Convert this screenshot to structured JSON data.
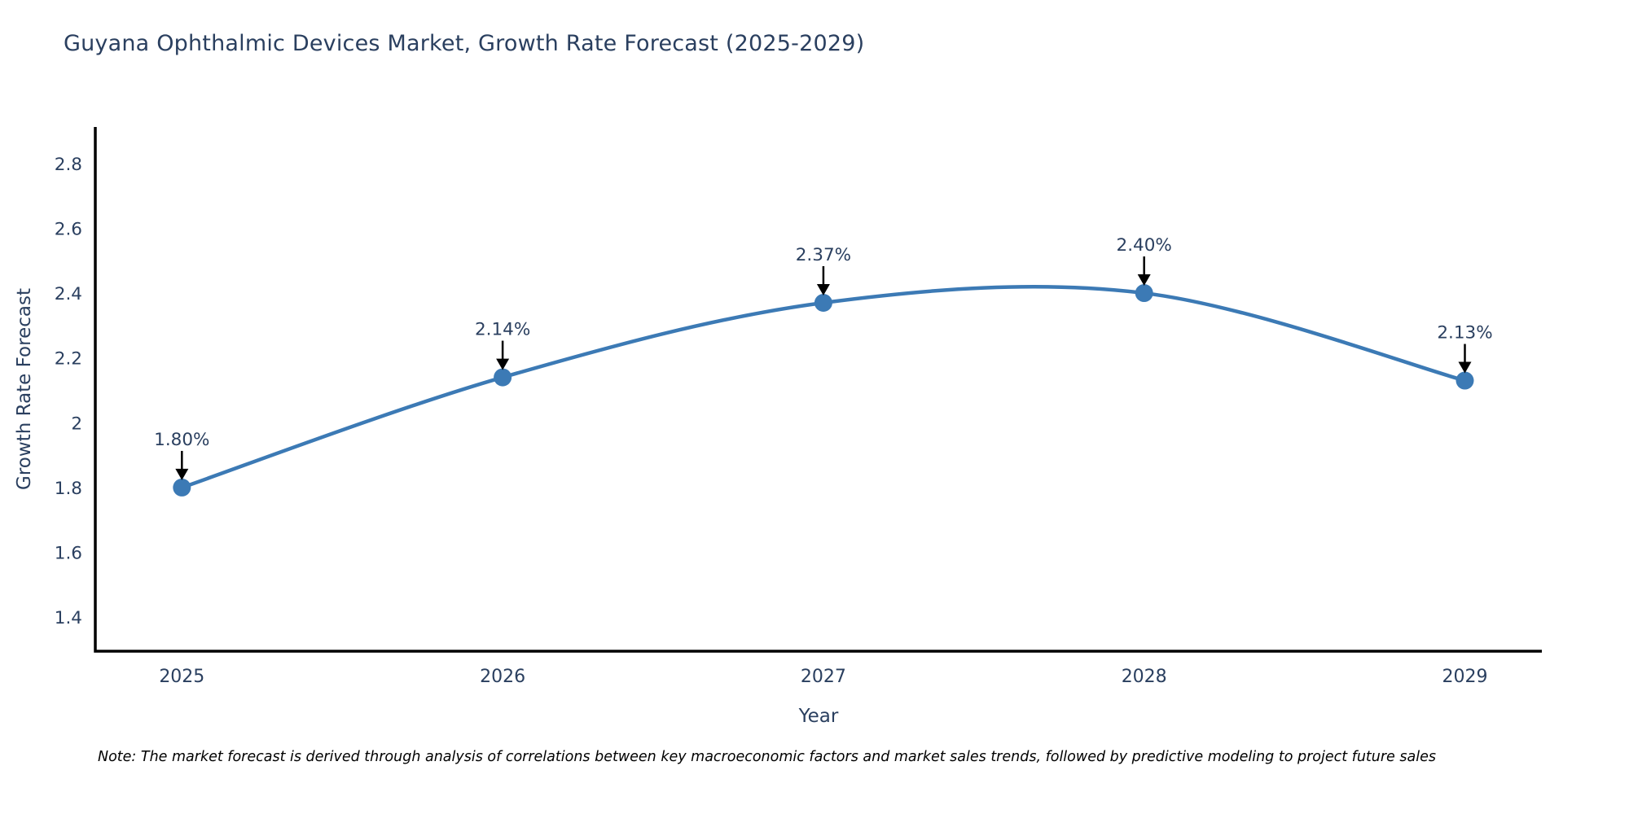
{
  "chart": {
    "title": "Guyana Ophthalmic Devices Market, Growth Rate Forecast (2025-2029)",
    "note": "Note: The market forecast is derived through analysis of correlations between key macroeconomic factors and market sales trends, followed by predictive modeling to project future sales"
  },
  "chart_data": {
    "type": "line",
    "title": "Guyana Ophthalmic Devices Market, Growth Rate Forecast (2025-2029)",
    "xlabel": "Year",
    "ylabel": "Growth Rate Forecast",
    "x": [
      2025,
      2026,
      2027,
      2028,
      2029
    ],
    "series": [
      {
        "name": "Growth Rate Forecast",
        "values": [
          1.8,
          2.14,
          2.37,
          2.4,
          2.13
        ],
        "point_labels": [
          "1.80%",
          "2.14%",
          "2.37%",
          "2.40%",
          "2.13%"
        ]
      }
    ],
    "xtick_labels": [
      "2025",
      "2026",
      "2027",
      "2028",
      "2029"
    ],
    "ytick_values": [
      1.4,
      1.6,
      1.8,
      2.0,
      2.2,
      2.4,
      2.6,
      2.8
    ],
    "ytick_labels": [
      "1.4",
      "1.6",
      "1.8",
      "2",
      "2.2",
      "2.4",
      "2.6",
      "2.8"
    ],
    "xlim": [
      2024.73,
      2029.24
    ],
    "ylim": [
      1.295,
      2.9125
    ],
    "line_shape": "spline",
    "grid": false,
    "legend_position": "none",
    "colors": {
      "line": "#3c7ab5",
      "marker": "#3c7ab5",
      "axis": "#000000",
      "tick_text": "#2a3f5f",
      "annotation_text": "#2a3f5f",
      "annotation_arrow": "#000000",
      "background": "#ffffff"
    }
  }
}
